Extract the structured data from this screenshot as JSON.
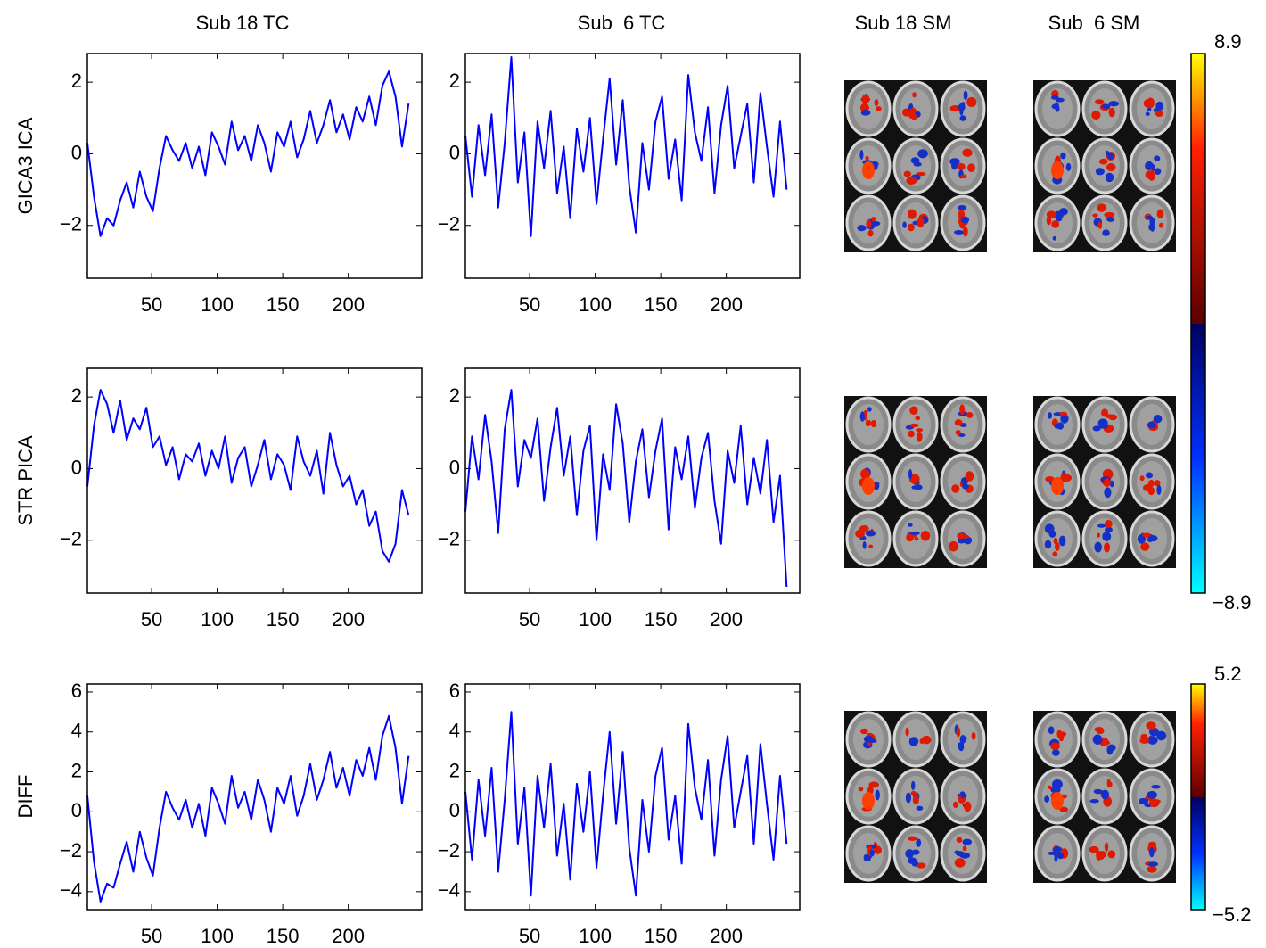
{
  "column_titles": [
    "Sub 18 TC",
    "Sub  6 TC",
    "Sub 18 SM",
    "Sub  6 SM"
  ],
  "row_labels": [
    "GICA3 ICA",
    "STR PICA",
    "DIFF"
  ],
  "colorbars": [
    {
      "max": 8.9,
      "min": {
        "value": -8.9,
        "label": "−8.9"
      }
    },
    {
      "max": 5.2,
      "min": {
        "value": -5.2,
        "label": "−5.2"
      }
    }
  ],
  "chart_data": [
    {
      "type": "line",
      "x": [
        1,
        6,
        11,
        16,
        21,
        26,
        31,
        36,
        41,
        46,
        51,
        56,
        61,
        66,
        71,
        76,
        81,
        86,
        91,
        96,
        101,
        106,
        111,
        116,
        121,
        126,
        131,
        136,
        141,
        146,
        151,
        156,
        161,
        166,
        171,
        176,
        181,
        186,
        191,
        196,
        201,
        206,
        211,
        216,
        221,
        226,
        231,
        236,
        241,
        246
      ],
      "series": [
        {
          "color": "#0000ff",
          "values": [
            0.3,
            -1.2,
            -2.3,
            -1.8,
            -2.0,
            -1.3,
            -0.8,
            -1.5,
            -0.5,
            -1.2,
            -1.6,
            -0.4,
            0.5,
            0.1,
            -0.2,
            0.3,
            -0.4,
            0.2,
            -0.6,
            0.6,
            0.2,
            -0.3,
            0.9,
            0.1,
            0.5,
            -0.2,
            0.8,
            0.3,
            -0.5,
            0.6,
            0.2,
            0.9,
            -0.1,
            0.4,
            1.2,
            0.3,
            0.8,
            1.5,
            0.6,
            1.1,
            0.4,
            1.3,
            0.9,
            1.6,
            0.8,
            1.9,
            2.3,
            1.6,
            0.2,
            1.4
          ]
        }
      ],
      "xlim": [
        1,
        256
      ],
      "ylim": [
        -3.475,
        2.8
      ],
      "xticks": [
        50,
        100,
        150,
        200
      ],
      "yticks": [
        {
          "value": -2,
          "label": "−2"
        },
        0,
        2
      ]
    },
    {
      "type": "line",
      "x": [
        1,
        6,
        11,
        16,
        21,
        26,
        31,
        36,
        41,
        46,
        51,
        56,
        61,
        66,
        71,
        76,
        81,
        86,
        91,
        96,
        101,
        106,
        111,
        116,
        121,
        126,
        131,
        136,
        141,
        146,
        151,
        156,
        161,
        166,
        171,
        176,
        181,
        186,
        191,
        196,
        201,
        206,
        211,
        216,
        221,
        226,
        231,
        236,
        241,
        246
      ],
      "series": [
        {
          "color": "#0000ff",
          "values": [
            0.5,
            -1.2,
            0.8,
            -0.6,
            1.1,
            -1.5,
            0.3,
            2.7,
            -0.8,
            0.6,
            -2.3,
            0.9,
            -0.4,
            1.2,
            -1.1,
            0.2,
            -1.8,
            0.7,
            -0.5,
            1.0,
            -1.4,
            0.4,
            2.1,
            -0.3,
            1.5,
            -0.9,
            -2.2,
            0.3,
            -1.0,
            0.9,
            1.6,
            -0.7,
            0.4,
            -1.3,
            2.2,
            0.6,
            -0.2,
            1.3,
            -1.1,
            0.8,
            1.9,
            -0.4,
            0.5,
            1.4,
            -0.8,
            1.7,
            0.2,
            -1.2,
            0.9,
            -1.0
          ]
        }
      ],
      "xlim": [
        1,
        256
      ],
      "ylim": [
        -3.475,
        2.8
      ],
      "xticks": [
        50,
        100,
        150,
        200
      ],
      "yticks": [
        {
          "value": -2,
          "label": "−2"
        },
        0,
        2
      ]
    },
    {
      "type": "line",
      "x": [
        1,
        6,
        11,
        16,
        21,
        26,
        31,
        36,
        41,
        46,
        51,
        56,
        61,
        66,
        71,
        76,
        81,
        86,
        91,
        96,
        101,
        106,
        111,
        116,
        121,
        126,
        131,
        136,
        141,
        146,
        151,
        156,
        161,
        166,
        171,
        176,
        181,
        186,
        191,
        196,
        201,
        206,
        211,
        216,
        221,
        226,
        231,
        236,
        241,
        246
      ],
      "series": [
        {
          "color": "#0000ff",
          "values": [
            -0.5,
            1.2,
            2.2,
            1.8,
            1.0,
            1.9,
            0.8,
            1.4,
            1.1,
            1.7,
            0.6,
            0.9,
            0.1,
            0.6,
            -0.3,
            0.4,
            0.2,
            0.7,
            -0.2,
            0.5,
            0.0,
            0.9,
            -0.4,
            0.3,
            0.6,
            -0.5,
            0.1,
            0.8,
            -0.3,
            0.4,
            0.1,
            -0.6,
            0.9,
            0.2,
            -0.2,
            0.5,
            -0.7,
            1.0,
            0.1,
            -0.5,
            -0.2,
            -1.0,
            -0.6,
            -1.6,
            -1.2,
            -2.3,
            -2.6,
            -2.1,
            -0.6,
            -1.3
          ]
        }
      ],
      "xlim": [
        1,
        256
      ],
      "ylim": [
        -3.475,
        2.8
      ],
      "xticks": [
        50,
        100,
        150,
        200
      ],
      "yticks": [
        {
          "value": -2,
          "label": "−2"
        },
        0,
        2
      ]
    },
    {
      "type": "line",
      "x": [
        1,
        6,
        11,
        16,
        21,
        26,
        31,
        36,
        41,
        46,
        51,
        56,
        61,
        66,
        71,
        76,
        81,
        86,
        91,
        96,
        101,
        106,
        111,
        116,
        121,
        126,
        131,
        136,
        141,
        146,
        151,
        156,
        161,
        166,
        171,
        176,
        181,
        186,
        191,
        196,
        201,
        206,
        211,
        216,
        221,
        226,
        231,
        236,
        241,
        246
      ],
      "series": [
        {
          "color": "#0000ff",
          "values": [
            -1.2,
            0.9,
            -0.3,
            1.5,
            0.2,
            -1.8,
            1.1,
            2.2,
            -0.5,
            0.8,
            0.3,
            1.4,
            -0.9,
            0.6,
            1.7,
            -0.2,
            0.9,
            -1.3,
            0.5,
            1.2,
            -2.0,
            0.4,
            -0.6,
            1.8,
            0.7,
            -1.5,
            0.2,
            1.1,
            -0.8,
            0.5,
            1.4,
            -1.7,
            0.6,
            -0.3,
            0.9,
            -1.1,
            0.3,
            1.0,
            -0.9,
            -2.1,
            0.5,
            -0.4,
            1.2,
            -1.0,
            0.3,
            -0.7,
            0.8,
            -1.5,
            -0.2,
            -3.3
          ]
        }
      ],
      "xlim": [
        1,
        256
      ],
      "ylim": [
        -3.475,
        2.8
      ],
      "xticks": [
        50,
        100,
        150,
        200
      ],
      "yticks": [
        {
          "value": -2,
          "label": "−2"
        },
        0,
        2
      ]
    },
    {
      "type": "line",
      "x": [
        1,
        6,
        11,
        16,
        21,
        26,
        31,
        36,
        41,
        46,
        51,
        56,
        61,
        66,
        71,
        76,
        81,
        86,
        91,
        96,
        101,
        106,
        111,
        116,
        121,
        126,
        131,
        136,
        141,
        146,
        151,
        156,
        161,
        166,
        171,
        176,
        181,
        186,
        191,
        196,
        201,
        206,
        211,
        216,
        221,
        226,
        231,
        236,
        241,
        246
      ],
      "series": [
        {
          "color": "#0000ff",
          "values": [
            0.8,
            -2.5,
            -4.5,
            -3.6,
            -3.8,
            -2.6,
            -1.5,
            -3.0,
            -1.0,
            -2.3,
            -3.2,
            -0.8,
            1.0,
            0.2,
            -0.4,
            0.6,
            -0.8,
            0.4,
            -1.2,
            1.2,
            0.4,
            -0.6,
            1.8,
            0.2,
            1.0,
            -0.4,
            1.6,
            0.6,
            -1.0,
            1.2,
            0.4,
            1.8,
            -0.2,
            0.8,
            2.4,
            0.6,
            1.6,
            3.0,
            1.2,
            2.2,
            0.8,
            2.6,
            1.8,
            3.2,
            1.6,
            3.8,
            4.8,
            3.2,
            0.4,
            2.8
          ]
        }
      ],
      "xlim": [
        1,
        256
      ],
      "ylim": [
        -4.9,
        6.4
      ],
      "xticks": [
        50,
        100,
        150,
        200
      ],
      "yticks": [
        {
          "value": -4,
          "label": "−4"
        },
        {
          "value": -2,
          "label": "−2"
        },
        0,
        2,
        4,
        6
      ]
    },
    {
      "type": "line",
      "x": [
        1,
        6,
        11,
        16,
        21,
        26,
        31,
        36,
        41,
        46,
        51,
        56,
        61,
        66,
        71,
        76,
        81,
        86,
        91,
        96,
        101,
        106,
        111,
        116,
        121,
        126,
        131,
        136,
        141,
        146,
        151,
        156,
        161,
        166,
        171,
        176,
        181,
        186,
        191,
        196,
        201,
        206,
        211,
        216,
        221,
        226,
        231,
        236,
        241,
        246
      ],
      "series": [
        {
          "color": "#0000ff",
          "values": [
            1.0,
            -2.4,
            1.6,
            -1.2,
            2.2,
            -3.0,
            0.6,
            5.0,
            -1.6,
            1.2,
            -4.2,
            1.8,
            -0.8,
            2.4,
            -2.2,
            0.4,
            -3.4,
            1.4,
            -1.0,
            2.0,
            -2.8,
            0.8,
            4.0,
            -0.6,
            3.0,
            -1.8,
            -4.2,
            0.6,
            -2.0,
            1.8,
            3.2,
            -1.4,
            0.8,
            -2.6,
            4.4,
            1.2,
            -0.4,
            2.6,
            -2.2,
            1.6,
            3.8,
            -0.8,
            1.0,
            2.8,
            -1.6,
            3.4,
            0.4,
            -2.4,
            1.8,
            -1.6
          ]
        }
      ],
      "xlim": [
        1,
        256
      ],
      "ylim": [
        -4.9,
        6.4
      ],
      "xticks": [
        50,
        100,
        150,
        200
      ],
      "yticks": [
        {
          "value": -4,
          "label": "−4"
        },
        {
          "value": -2,
          "label": "−2"
        },
        0,
        2,
        4,
        6
      ]
    }
  ]
}
